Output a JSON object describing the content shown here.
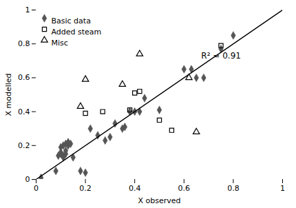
{
  "chart_data": {
    "type": "scatter",
    "xlabel": "X observed",
    "ylabel": "X modelled",
    "xlim": [
      0,
      1
    ],
    "ylim": [
      0,
      1
    ],
    "xticks": [
      0,
      0.2,
      0.4,
      0.6,
      0.8,
      1
    ],
    "yticks": [
      0,
      0.2,
      0.4,
      0.6,
      0.8,
      1
    ],
    "grid": false,
    "legend": "upper left",
    "series": [
      {
        "name": "Basic data",
        "color": "#555555",
        "marker": "diamond",
        "x": [
          0.02,
          0.08,
          0.09,
          0.1,
          0.1,
          0.1,
          0.11,
          0.11,
          0.11,
          0.12,
          0.12,
          0.12,
          0.13,
          0.13,
          0.14,
          0.15,
          0.18,
          0.2,
          0.22,
          0.25,
          0.28,
          0.3,
          0.32,
          0.35,
          0.36,
          0.38,
          0.4,
          0.42,
          0.44,
          0.5,
          0.6,
          0.63,
          0.65,
          0.68,
          0.75,
          0.8
        ],
        "values": [
          0.01,
          0.05,
          0.14,
          0.15,
          0.16,
          0.19,
          0.13,
          0.14,
          0.2,
          0.15,
          0.17,
          0.21,
          0.2,
          0.22,
          0.21,
          0.13,
          0.05,
          0.04,
          0.3,
          0.26,
          0.23,
          0.25,
          0.33,
          0.3,
          0.31,
          0.4,
          0.4,
          0.4,
          0.48,
          0.41,
          0.65,
          0.65,
          0.6,
          0.6,
          0.77,
          0.85
        ]
      },
      {
        "name": "Added steam",
        "color": "#000000",
        "marker": "square-open",
        "x": [
          0.2,
          0.27,
          0.38,
          0.4,
          0.42,
          0.5,
          0.55,
          0.75
        ],
        "values": [
          0.39,
          0.4,
          0.41,
          0.51,
          0.52,
          0.35,
          0.29,
          0.79
        ]
      },
      {
        "name": "Misc",
        "color": "#000000",
        "marker": "triangle-open",
        "x": [
          0.18,
          0.2,
          0.35,
          0.42,
          0.62,
          0.65
        ],
        "values": [
          0.43,
          0.59,
          0.56,
          0.74,
          0.6,
          0.28
        ]
      },
      {
        "type": "line",
        "color": "#000000",
        "line_style": "solid",
        "x": [
          0,
          1
        ],
        "values": [
          0,
          1
        ]
      }
    ],
    "annotations": [
      {
        "text": "R² = 0.91",
        "x": 0.67,
        "y": 0.73
      }
    ]
  }
}
